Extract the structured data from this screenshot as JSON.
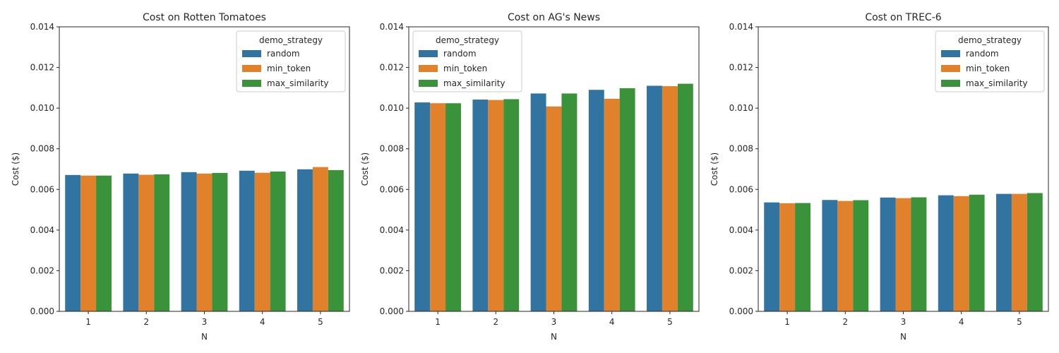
{
  "chart_data": [
    {
      "type": "bar",
      "title": "Cost on Rotten Tomatoes",
      "xlabel": "N",
      "ylabel": "Cost ($)",
      "ylim": [
        0,
        0.014
      ],
      "yticks": [
        "0.000",
        "0.002",
        "0.004",
        "0.006",
        "0.008",
        "0.010",
        "0.012",
        "0.014"
      ],
      "categories": [
        "1",
        "2",
        "3",
        "4",
        "5"
      ],
      "legend": {
        "title": "demo_strategy",
        "position": "top-right"
      },
      "series": [
        {
          "name": "random",
          "color": "#3274a1",
          "values": [
            0.00671,
            0.00678,
            0.00685,
            0.00692,
            0.00699
          ]
        },
        {
          "name": "min_token",
          "color": "#e1812c",
          "values": [
            0.00668,
            0.00672,
            0.00678,
            0.00682,
            0.0071
          ]
        },
        {
          "name": "max_similarity",
          "color": "#3a923a",
          "values": [
            0.00668,
            0.00674,
            0.00681,
            0.00688,
            0.00695
          ]
        }
      ]
    },
    {
      "type": "bar",
      "title": "Cost on AG's News",
      "xlabel": "N",
      "ylabel": "Cost ($)",
      "ylim": [
        0,
        0.014
      ],
      "yticks": [
        "0.000",
        "0.002",
        "0.004",
        "0.006",
        "0.008",
        "0.010",
        "0.012",
        "0.014"
      ],
      "categories": [
        "1",
        "2",
        "3",
        "4",
        "5"
      ],
      "legend": {
        "title": "demo_strategy",
        "position": "top-left"
      },
      "series": [
        {
          "name": "random",
          "color": "#3274a1",
          "values": [
            0.01028,
            0.01042,
            0.01072,
            0.0109,
            0.0111
          ]
        },
        {
          "name": "min_token",
          "color": "#e1812c",
          "values": [
            0.01024,
            0.0104,
            0.01008,
            0.01046,
            0.01108
          ]
        },
        {
          "name": "max_similarity",
          "color": "#3a923a",
          "values": [
            0.01024,
            0.01044,
            0.01072,
            0.01098,
            0.0112
          ]
        }
      ]
    },
    {
      "type": "bar",
      "title": "Cost on TREC-6",
      "xlabel": "N",
      "ylabel": "Cost ($)",
      "ylim": [
        0,
        0.014
      ],
      "yticks": [
        "0.000",
        "0.002",
        "0.004",
        "0.006",
        "0.008",
        "0.010",
        "0.012",
        "0.014"
      ],
      "categories": [
        "1",
        "2",
        "3",
        "4",
        "5"
      ],
      "legend": {
        "title": "demo_strategy",
        "position": "top-right"
      },
      "series": [
        {
          "name": "random",
          "color": "#3274a1",
          "values": [
            0.00536,
            0.00548,
            0.0056,
            0.00571,
            0.00578
          ]
        },
        {
          "name": "min_token",
          "color": "#e1812c",
          "values": [
            0.00532,
            0.00543,
            0.00557,
            0.00567,
            0.00578
          ]
        },
        {
          "name": "max_similarity",
          "color": "#3a923a",
          "values": [
            0.00533,
            0.00547,
            0.00561,
            0.00574,
            0.00582
          ]
        }
      ]
    }
  ]
}
